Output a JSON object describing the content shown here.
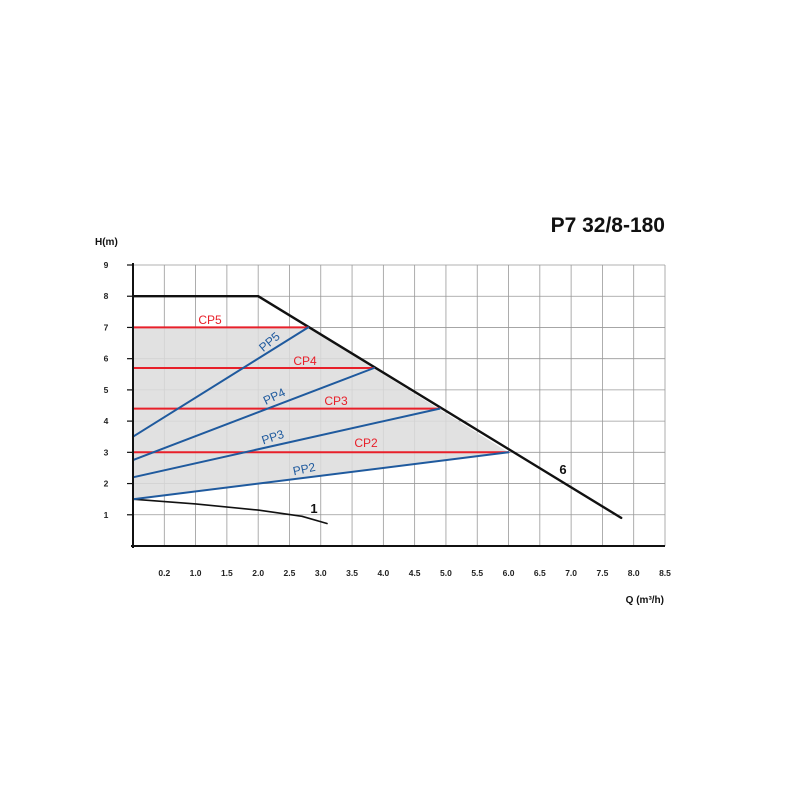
{
  "chart_data": {
    "type": "line",
    "title": "P7 32/8-180",
    "xlabel": "Q (m³/h)",
    "ylabel": "H(m)",
    "xlim": [
      0,
      8.5
    ],
    "ylim": [
      0,
      9
    ],
    "x_ticks": [
      "0.2",
      "1.0",
      "1.5",
      "2.0",
      "2.5",
      "3.0",
      "3.5",
      "4.0",
      "4.5",
      "5.0",
      "5.5",
      "6.0",
      "6.5",
      "7.0",
      "7.5",
      "8.0",
      "8.5"
    ],
    "y_ticks": [
      "1",
      "2",
      "3",
      "4",
      "5",
      "6",
      "7",
      "8",
      "9"
    ],
    "grid": true,
    "colors": {
      "cp": "#e8202a",
      "pp": "#1f5a9e",
      "max": "#111111",
      "region": "#dcdcdc"
    },
    "operating_region": [
      [
        0,
        1.5
      ],
      [
        0,
        7.0
      ],
      [
        2.8,
        7.0
      ],
      [
        6.0,
        3.0
      ]
    ],
    "series": [
      {
        "name": "6",
        "kind": "max",
        "points": [
          [
            0,
            8
          ],
          [
            2.0,
            8
          ],
          [
            7.8,
            0.9
          ]
        ]
      },
      {
        "name": "1",
        "kind": "min",
        "points": [
          [
            0,
            1.5
          ],
          [
            1.0,
            1.35
          ],
          [
            2.0,
            1.15
          ],
          [
            2.7,
            0.95
          ],
          [
            3.1,
            0.72
          ]
        ]
      },
      {
        "name": "CP5",
        "kind": "cp",
        "points": [
          [
            0,
            7.0
          ],
          [
            2.8,
            7.0
          ]
        ]
      },
      {
        "name": "CP4",
        "kind": "cp",
        "points": [
          [
            0,
            5.7
          ],
          [
            3.85,
            5.7
          ]
        ]
      },
      {
        "name": "CP3",
        "kind": "cp",
        "points": [
          [
            0,
            4.4
          ],
          [
            4.9,
            4.4
          ]
        ]
      },
      {
        "name": "CP2",
        "kind": "cp",
        "points": [
          [
            0,
            3.0
          ],
          [
            6.0,
            3.0
          ]
        ]
      },
      {
        "name": "PP5",
        "kind": "pp",
        "points": [
          [
            0,
            3.5
          ],
          [
            2.8,
            7.0
          ]
        ]
      },
      {
        "name": "PP4",
        "kind": "pp",
        "points": [
          [
            0,
            2.75
          ],
          [
            3.85,
            5.7
          ]
        ]
      },
      {
        "name": "PP3",
        "kind": "pp",
        "points": [
          [
            0,
            2.2
          ],
          [
            4.9,
            4.4
          ]
        ]
      },
      {
        "name": "PP2",
        "kind": "pp",
        "points": [
          [
            0,
            1.5
          ],
          [
            6.0,
            3.0
          ]
        ]
      }
    ]
  }
}
